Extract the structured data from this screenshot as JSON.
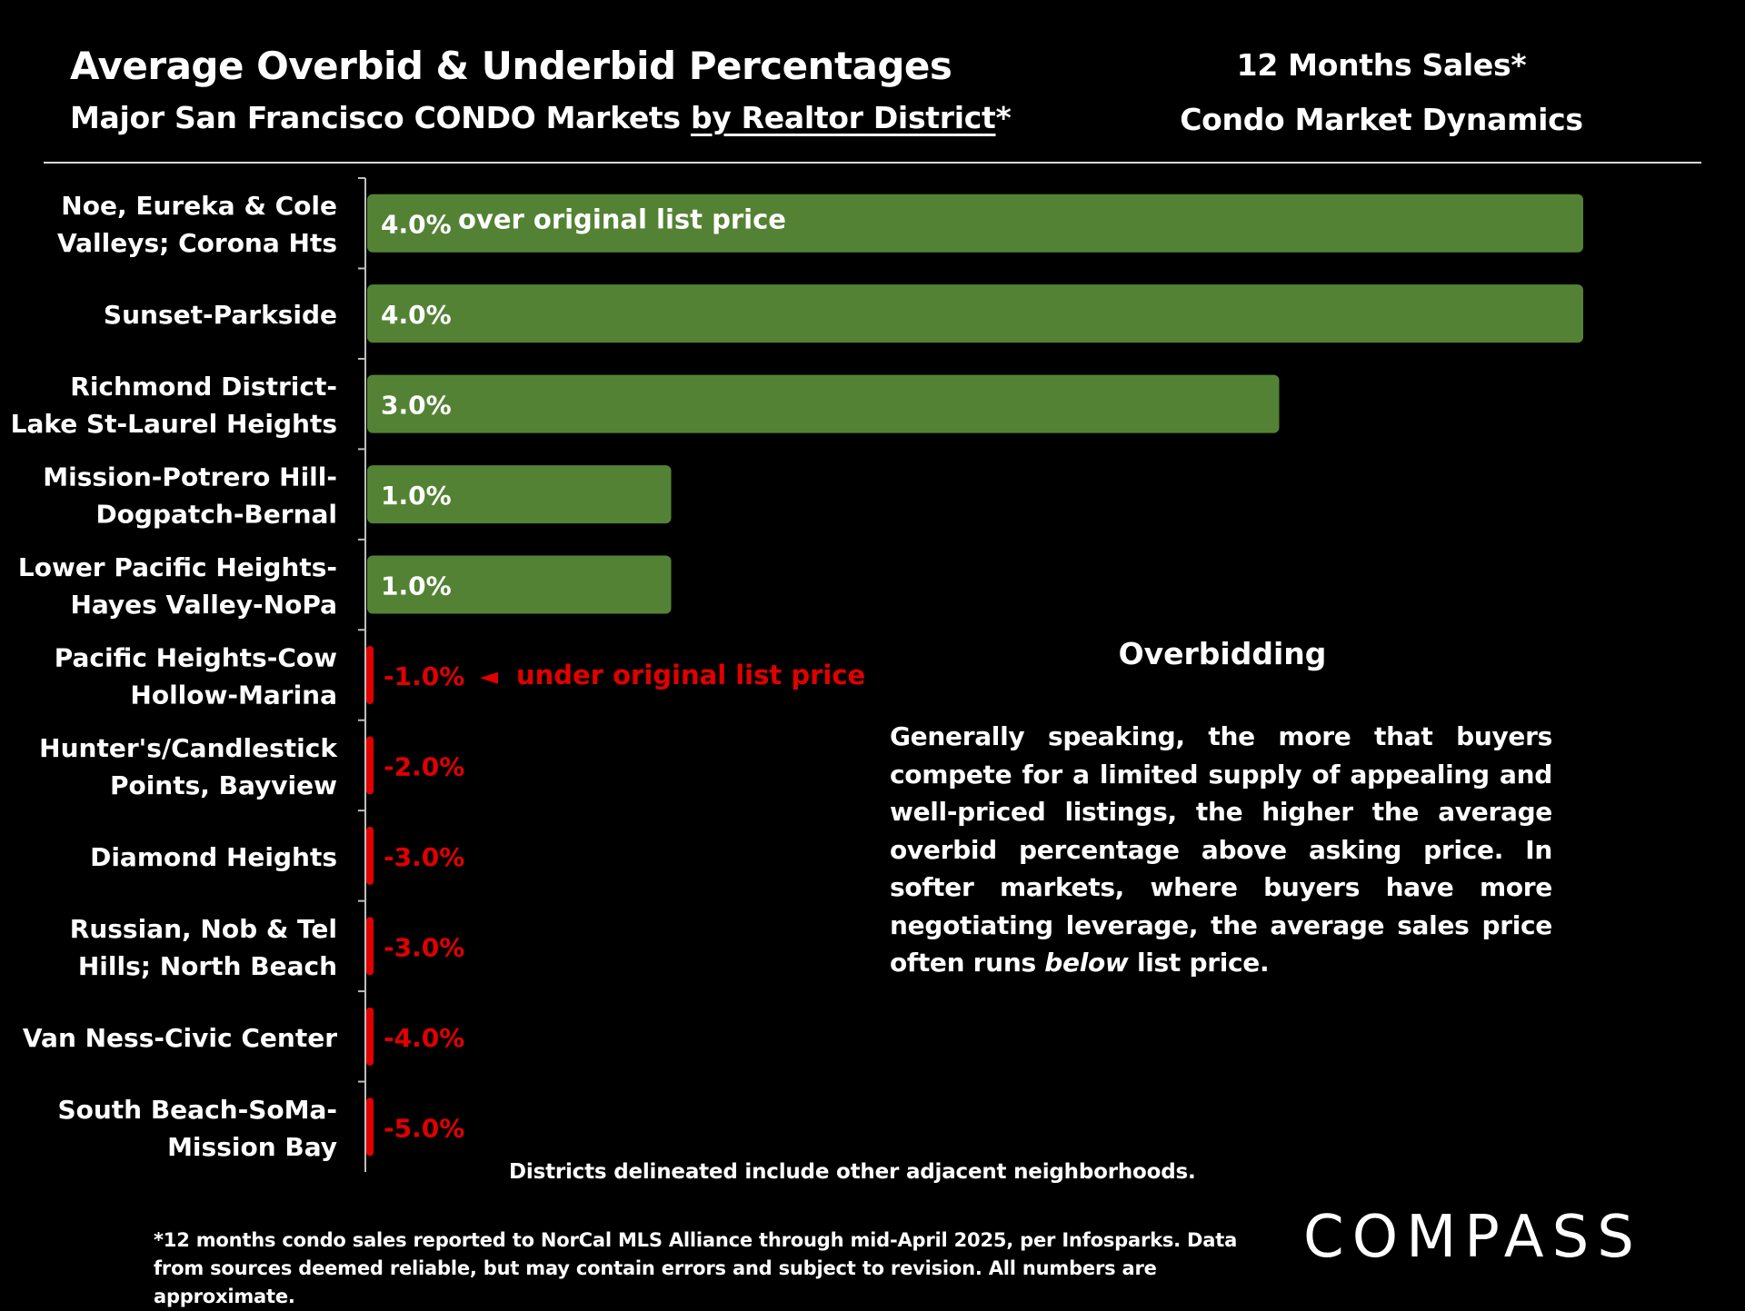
{
  "header": {
    "title": "Average Overbid & Underbid Percentages",
    "subtitle_prefix": "Major San Francisco CONDO Markets ",
    "subtitle_underlined": "by Realtor District",
    "subtitle_suffix": "*",
    "right_line1": "12 Months Sales*",
    "right_line2": "Condo Market Dynamics"
  },
  "chart_data": {
    "type": "bar",
    "orientation": "horizontal",
    "title": "Average Overbid & Underbid Percentages",
    "categories": [
      [
        "Noe, Eureka & Cole",
        "Valleys; Corona Hts"
      ],
      [
        "Sunset-Parkside"
      ],
      [
        "Richmond District-",
        "Lake St-Laurel Heights"
      ],
      [
        "Mission-Potrero Hill-",
        "Dogpatch-Bernal"
      ],
      [
        "Lower Pacific Heights-",
        "Hayes Valley-NoPa"
      ],
      [
        "Pacific Heights-Cow",
        "Hollow-Marina"
      ],
      [
        "Hunter's/Candlestick",
        "Points, Bayview"
      ],
      [
        "Diamond Heights"
      ],
      [
        "Russian, Nob & Tel",
        "Hills; North Beach"
      ],
      [
        "Van Ness-Civic Center"
      ],
      [
        "South Beach-SoMa-",
        "Mission Bay"
      ]
    ],
    "values": [
      4.0,
      4.0,
      3.0,
      1.0,
      1.0,
      -1.0,
      -2.0,
      -3.0,
      -3.0,
      -4.0,
      -5.0
    ],
    "data_labels": [
      "4.0%",
      "4.0%",
      "3.0%",
      "1.0%",
      "1.0%",
      "-1.0%",
      "-2.0%",
      "-3.0%",
      "-3.0%",
      "-4.0%",
      "-5.0%"
    ],
    "unit": "%",
    "xlim": [
      0,
      4.0
    ],
    "positive_color": "#548235",
    "negative_color": "#e00000",
    "annotations": {
      "over": "over original list price",
      "under_arrow": "◄",
      "under": "under original list price"
    },
    "grid": false,
    "legend": "none"
  },
  "overbidding": {
    "heading": "Overbidding",
    "text_before": "Generally speaking, the more that buyers compete for a limited supply of appealing and well-priced listings, the higher the average overbid percentage above asking price. In softer markets, where buyers have more negotiating leverage, the average sales price often runs ",
    "text_italic": "below",
    "text_after": " list price."
  },
  "footer": {
    "districts_note": "Districts delineated include other adjacent neighborhoods.",
    "footnote": "*12 months condo sales reported to NorCal MLS Alliance through mid-April 2025, per Infosparks. Data from sources deemed reliable, but may contain errors and subject to revision. All numbers are approximate.",
    "logo": "COMPASS"
  },
  "colors": {
    "background": "#000000",
    "text": "#ffffff"
  }
}
